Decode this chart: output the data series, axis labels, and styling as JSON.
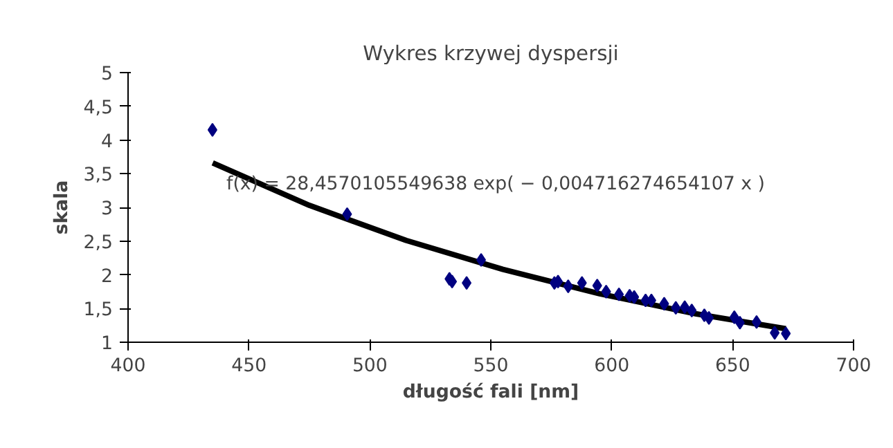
{
  "chart_data": {
    "type": "scatter",
    "title": "Wykres krzywej dyspersji",
    "xlabel": "długość fali [nm]",
    "ylabel": "skala",
    "xlim": [
      400,
      700
    ],
    "xticks": [
      400,
      450,
      500,
      550,
      600,
      650,
      700
    ],
    "ylim": [
      1,
      5
    ],
    "yticks": [
      1,
      {
        "value": 1.5,
        "label": "1,5"
      },
      2,
      {
        "value": 2.5,
        "label": "2,5"
      },
      3,
      {
        "value": 3.5,
        "label": "3,5"
      },
      4,
      {
        "value": 4.5,
        "label": "4,5"
      },
      5
    ],
    "grid": false,
    "marker": "diamond",
    "series": [
      {
        "color": "#000080",
        "x": [
          434.9,
          490.6,
          532.9,
          534,
          540,
          546,
          576.3,
          577.8,
          582,
          587.7,
          594,
          597.7,
          603,
          607.4,
          609.3,
          614,
          616.4,
          621.7,
          626.5,
          630.2,
          633.1,
          638.3,
          640.2,
          650.7,
          653,
          659.9,
          667.4,
          672
        ],
        "values": [
          4.15,
          2.9,
          1.94,
          1.9,
          1.88,
          2.22,
          1.88,
          1.9,
          1.83,
          1.88,
          1.84,
          1.75,
          1.71,
          1.69,
          1.67,
          1.62,
          1.62,
          1.57,
          1.51,
          1.52,
          1.47,
          1.4,
          1.36,
          1.37,
          1.29,
          1.3,
          1.14,
          1.13
        ]
      },
      {
        "type": "line",
        "color": "#000000",
        "marker": "none",
        "x": [
          435,
          475,
          515,
          555,
          595,
          635,
          672
        ],
        "values": [
          3.66,
          3.03,
          2.51,
          2.08,
          1.72,
          1.42,
          1.2
        ]
      }
    ],
    "annotations": [
      "f(x) = 28,4570105549638 exp( − 0,004716274654107 x )"
    ]
  }
}
